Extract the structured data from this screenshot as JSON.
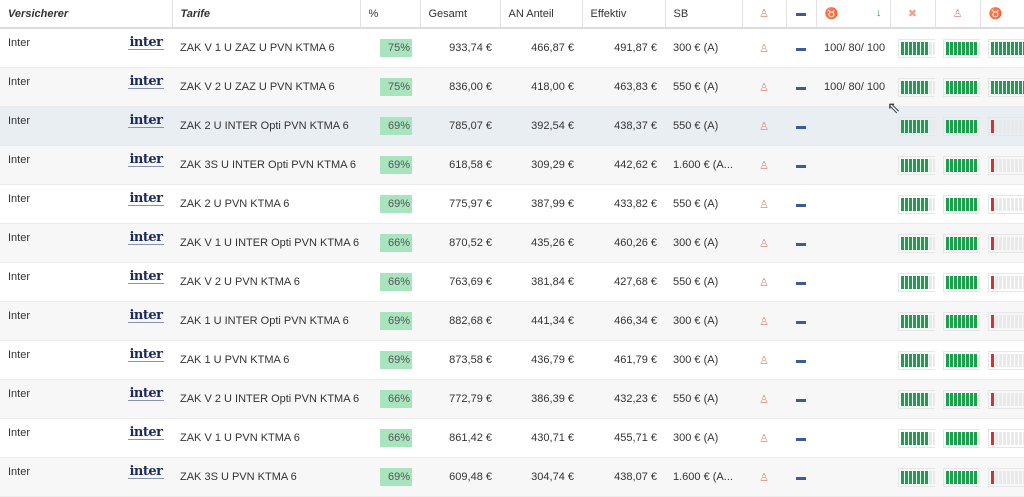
{
  "headers": {
    "versicherer": "Versicherer",
    "tarife": "Tarife",
    "pct": "%",
    "gesamt": "Gesamt",
    "an_anteil": "AN Anteil",
    "effektiv": "Effektiv",
    "sb": "SB",
    "icons": [
      "person-icon",
      "bed-icon",
      "tooth-icon",
      "cross-icon",
      "person-icon",
      "tooth-icon"
    ],
    "sort_indicator": "↓"
  },
  "colors": {
    "green": "#1e9e4e",
    "red": "#d63030",
    "pct_bg": "#a8e4bd",
    "hover": "#e9eef3"
  },
  "logo_text": "inter",
  "rows": [
    {
      "ins": "Inter",
      "tarif": "ZAK V 1 U ZAZ U PVN KTMA 6",
      "pct": "75%",
      "gesamt": "933,74 €",
      "an": "466,87 €",
      "eff": "491,87 €",
      "sb": "300 € (A)",
      "zahn": "100/ 80/ 100",
      "r1": 0.7,
      "r2": 0.8,
      "r3": 1.0,
      "r3c": "green"
    },
    {
      "ins": "Inter",
      "tarif": "ZAK V 2 U ZAZ U PVN KTMA 6",
      "pct": "75%",
      "gesamt": "836,00 €",
      "an": "418,00 €",
      "eff": "463,83 €",
      "sb": "550 € (A)",
      "zahn": "100/ 80/ 100",
      "r1": 0.7,
      "r2": 0.8,
      "r3": 1.0,
      "r3c": "green"
    },
    {
      "ins": "Inter",
      "tarif": "ZAK 2 U INTER Opti PVN KTMA 6",
      "pct": "69%",
      "gesamt": "785,07 €",
      "an": "392,54 €",
      "eff": "438,37 €",
      "sb": "550 € (A)",
      "zahn": "",
      "r1": 0.7,
      "r2": 0.8,
      "r3": 0.1,
      "r3c": "red"
    },
    {
      "ins": "Inter",
      "tarif": "ZAK 3S U INTER Opti PVN KTMA 6",
      "pct": "69%",
      "gesamt": "618,58 €",
      "an": "309,29 €",
      "eff": "442,62 €",
      "sb": "1.600 € (A...",
      "zahn": "",
      "r1": 0.7,
      "r2": 0.8,
      "r3": 0.1,
      "r3c": "red"
    },
    {
      "ins": "Inter",
      "tarif": "ZAK 2 U PVN KTMA 6",
      "pct": "69%",
      "gesamt": "775,97 €",
      "an": "387,99 €",
      "eff": "433,82 €",
      "sb": "550 € (A)",
      "zahn": "",
      "r1": 0.7,
      "r2": 0.8,
      "r3": 0.1,
      "r3c": "red"
    },
    {
      "ins": "Inter",
      "tarif": "ZAK V 1 U INTER Opti PVN KTMA 6",
      "pct": "66%",
      "gesamt": "870,52 €",
      "an": "435,26 €",
      "eff": "460,26 €",
      "sb": "300 € (A)",
      "zahn": "",
      "r1": 0.7,
      "r2": 0.8,
      "r3": 0.1,
      "r3c": "red"
    },
    {
      "ins": "Inter",
      "tarif": "ZAK V 2 U PVN KTMA 6",
      "pct": "66%",
      "gesamt": "763,69 €",
      "an": "381,84 €",
      "eff": "427,68 €",
      "sb": "550 € (A)",
      "zahn": "",
      "r1": 0.7,
      "r2": 0.8,
      "r3": 0.1,
      "r3c": "red"
    },
    {
      "ins": "Inter",
      "tarif": "ZAK 1 U INTER Opti PVN KTMA 6",
      "pct": "69%",
      "gesamt": "882,68 €",
      "an": "441,34 €",
      "eff": "466,34 €",
      "sb": "300 € (A)",
      "zahn": "",
      "r1": 0.7,
      "r2": 0.8,
      "r3": 0.1,
      "r3c": "red"
    },
    {
      "ins": "Inter",
      "tarif": "ZAK 1 U PVN KTMA 6",
      "pct": "69%",
      "gesamt": "873,58 €",
      "an": "436,79 €",
      "eff": "461,79 €",
      "sb": "300 € (A)",
      "zahn": "",
      "r1": 0.7,
      "r2": 0.8,
      "r3": 0.1,
      "r3c": "red"
    },
    {
      "ins": "Inter",
      "tarif": "ZAK V 2 U INTER Opti PVN KTMA 6",
      "pct": "66%",
      "gesamt": "772,79 €",
      "an": "386,39 €",
      "eff": "432,23 €",
      "sb": "550 € (A)",
      "zahn": "",
      "r1": 0.7,
      "r2": 0.8,
      "r3": 0.1,
      "r3c": "red"
    },
    {
      "ins": "Inter",
      "tarif": "ZAK V 1 U PVN KTMA 6",
      "pct": "66%",
      "gesamt": "861,42 €",
      "an": "430,71 €",
      "eff": "455,71 €",
      "sb": "300 € (A)",
      "zahn": "",
      "r1": 0.7,
      "r2": 0.8,
      "r3": 0.1,
      "r3c": "red"
    },
    {
      "ins": "Inter",
      "tarif": "ZAK 3S U PVN KTMA 6",
      "pct": "69%",
      "gesamt": "609,48 €",
      "an": "304,74 €",
      "eff": "438,07 €",
      "sb": "1.600 € (A...",
      "zahn": "",
      "r1": 0.7,
      "r2": 0.8,
      "r3": 0.1,
      "r3c": "red"
    }
  ]
}
